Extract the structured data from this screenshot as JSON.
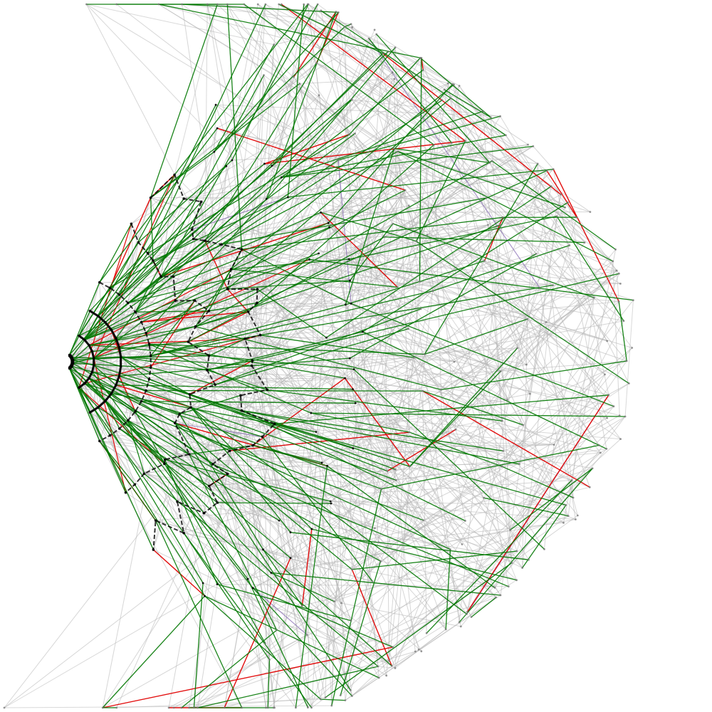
{
  "diagram": {
    "kind": "radial-tree-network",
    "background": "#ffffff",
    "palette": {
      "background_edge": "#b4b4b4",
      "tree_edge": "#007700",
      "cross_edge": "#e00000",
      "alt_edge": "#8a6fb5",
      "node": "#000000",
      "faint_node": "#777777",
      "arc": "#000000"
    },
    "text": []
  }
}
